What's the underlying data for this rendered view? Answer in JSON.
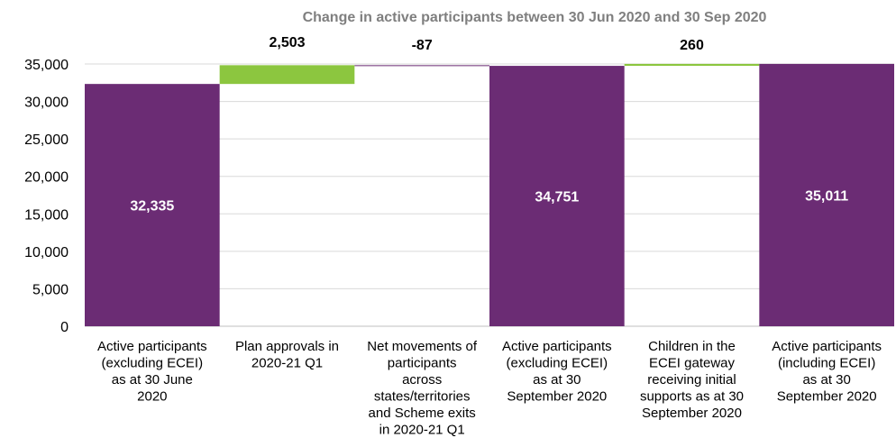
{
  "chart_data": {
    "type": "bar",
    "subtype": "waterfall",
    "title": "Change in active participants between 30 Jun 2020 and 30 Sep 2020",
    "xlabel": "",
    "ylabel": "",
    "ylim": [
      0,
      35000
    ],
    "yticks": [
      0,
      5000,
      10000,
      15000,
      20000,
      25000,
      30000,
      35000
    ],
    "ytick_labels": [
      "0",
      "5,000",
      "10,000",
      "15,000",
      "20,000",
      "25,000",
      "30,000",
      "35,000"
    ],
    "grid": true,
    "legend": "none",
    "categories": [
      [
        "Active participants",
        "(excluding ECEI)",
        "as at 30 June",
        "2020"
      ],
      [
        "Plan approvals in",
        "2020-21 Q1"
      ],
      [
        "Net movements of",
        "participants",
        "across",
        "states/territories",
        "and Scheme exits",
        "in 2020-21 Q1"
      ],
      [
        "Active participants",
        "(excluding ECEI)",
        "as at 30",
        "September 2020"
      ],
      [
        "Children in the",
        "ECEI gateway",
        "receiving initial",
        "supports as at 30",
        "September 2020"
      ],
      [
        "Active participants",
        "(including ECEI)",
        "as at 30",
        "September 2020"
      ]
    ],
    "values": [
      32335,
      2503,
      -87,
      34751,
      260,
      35011
    ],
    "kinds": [
      "total",
      "delta",
      "delta",
      "total",
      "delta",
      "total"
    ],
    "data_labels": [
      "32,335",
      "2,503",
      "-87",
      "34,751",
      "260",
      "35,011"
    ],
    "colors": {
      "total": "#6b2c74",
      "increase": "#8cc63f",
      "decrease": "#6b2c74",
      "total_label": "#ffffff",
      "delta_label": "#000000",
      "grid": "#d9d9d9",
      "axis": "#bfbfbf"
    }
  }
}
